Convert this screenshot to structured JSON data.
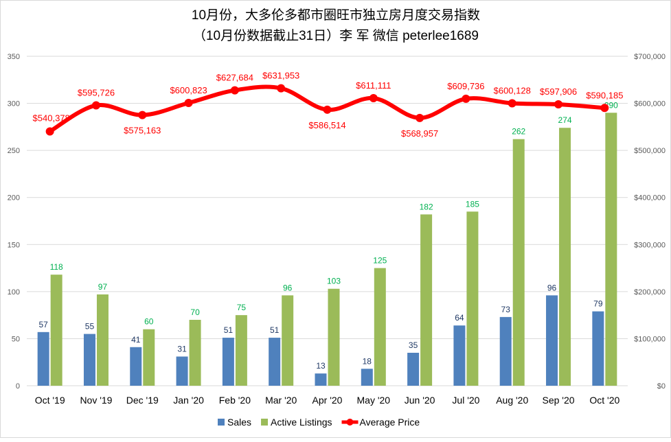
{
  "chart_data": {
    "type": "bar+line",
    "title": "10月份，大多伦多都市圈旺市独立房月度交易指数",
    "subtitle": "（10月份数据截止31日）李 军  微信  peterlee1689",
    "categories": [
      "Oct '19",
      "Nov '19",
      "Dec '19",
      "Jan '20",
      "Feb '20",
      "Mar '20",
      "Apr '20",
      "May '20",
      "Jun '20",
      "Jul '20",
      "Aug '20",
      "Sep '20",
      "Oct '20"
    ],
    "series": [
      {
        "name": "Sales",
        "type": "bar",
        "axis": "left",
        "color": "#4f81bd",
        "label_color": "#1f3864",
        "values": [
          57,
          55,
          41,
          31,
          51,
          51,
          13,
          18,
          35,
          64,
          73,
          96,
          79
        ]
      },
      {
        "name": "Active Listings",
        "type": "bar",
        "axis": "left",
        "color": "#9bbb59",
        "label_color": "#00b050",
        "values": [
          118,
          97,
          60,
          70,
          75,
          96,
          103,
          125,
          182,
          185,
          262,
          274,
          290
        ]
      },
      {
        "name": "Average Price",
        "type": "line",
        "axis": "right",
        "color": "#ff0000",
        "values": [
          540378,
          595726,
          575163,
          600823,
          627684,
          631953,
          586514,
          611111,
          568957,
          609736,
          600128,
          597906,
          590185
        ],
        "labels": [
          "$540,378",
          "$595,726",
          "$575,163",
          "$600,823",
          "$627,684",
          "$631,953",
          "$586,514",
          "$611,111",
          "$568,957",
          "$609,736",
          "$600,128",
          "$597,906",
          "$590,185"
        ]
      }
    ],
    "y_left": {
      "range": [
        0,
        350
      ],
      "ticks": [
        "0",
        "50",
        "100",
        "150",
        "200",
        "250",
        "300",
        "350"
      ]
    },
    "y_right": {
      "range": [
        0,
        700000
      ],
      "ticks": [
        "$0",
        "$100,000",
        "$200,000",
        "$300,000",
        "$400,000",
        "$500,000",
        "$600,000",
        "$700,000"
      ]
    },
    "grid": true,
    "legend": {
      "position": "bottom",
      "entries": [
        "Sales",
        "Active Listings",
        "Average Price"
      ]
    }
  }
}
